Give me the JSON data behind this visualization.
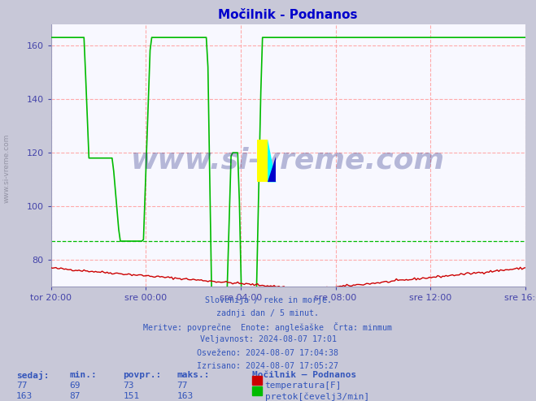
{
  "title": "Močilnik - Podnanos",
  "title_color": "#0000cc",
  "fig_bg_color": "#c8c8d8",
  "plot_bg_color": "#f8f8ff",
  "grid_color_h": "#ffaaaa",
  "grid_color_v": "#ffaaaa",
  "temp_color": "#cc0000",
  "flow_color": "#00bb00",
  "flow_min_line_color": "#00bb00",
  "flow_min_value": 87,
  "ylim": [
    70,
    168
  ],
  "yticks": [
    80,
    100,
    120,
    140,
    160
  ],
  "xtick_labels": [
    "tor 20:00",
    "sre 00:00",
    "sre 04:00",
    "sre 08:00",
    "sre 12:00",
    "sre 16:00"
  ],
  "xtick_positions": [
    0.0,
    0.2,
    0.4,
    0.6,
    0.8,
    1.0
  ],
  "tick_color": "#4444aa",
  "info_lines": [
    "Slovenija / reke in morje.",
    "zadnji dan / 5 minut.",
    "Meritve: povprečne  Enote: anglešaške  Črta: minmum",
    "Veljavnost: 2024-08-07 17:01",
    "Osveženo: 2024-08-07 17:04:38",
    "Izrisano: 2024-08-07 17:05:27"
  ],
  "info_color": "#3355bb",
  "table_headers": [
    "sedaj:",
    "min.:",
    "povpr.:",
    "maks.:"
  ],
  "table_station": "Močilnik – Podnanos",
  "table_row1_vals": [
    "77",
    "69",
    "73",
    "77"
  ],
  "table_row1_label": "temperatura[F]",
  "table_row1_color": "#cc0000",
  "table_row2_vals": [
    "163",
    "87",
    "151",
    "163"
  ],
  "table_row2_label": "pretok[čevelj3/min]",
  "table_row2_color": "#00bb00",
  "watermark": "www.si-vreme.com",
  "watermark_color": "#1a237e",
  "watermark_alpha": 0.3,
  "side_label": "www.si-vreme.com",
  "side_label_color": "#888899"
}
